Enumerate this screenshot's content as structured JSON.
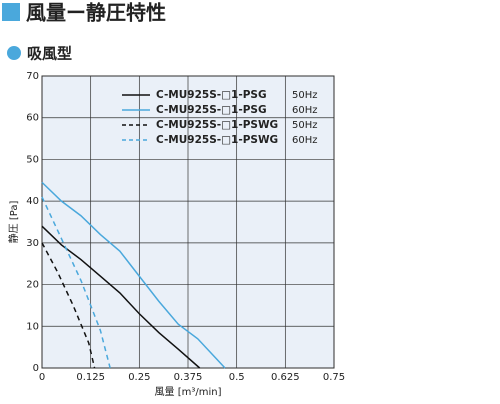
{
  "title": "風量ー静圧特性",
  "subtitle": "吸風型",
  "chart_data": {
    "type": "line",
    "xlabel": "風量 [m³/min]",
    "ylabel": "静圧 [Pa]",
    "xlim": [
      0,
      0.75
    ],
    "xticks": [
      0,
      0.125,
      0.25,
      0.375,
      0.5,
      0.625,
      0.75
    ],
    "ylim": [
      0,
      70
    ],
    "yticks": [
      0,
      10,
      20,
      30,
      40,
      50,
      60,
      70
    ],
    "grid": true,
    "legend": "upper right",
    "series": [
      {
        "name": "C-MU925S-□1-PSG",
        "frequency": "50Hz",
        "color": "#111111",
        "dashed": false,
        "x": [
          0,
          0.05,
          0.1,
          0.15,
          0.2,
          0.25,
          0.3,
          0.35,
          0.405
        ],
        "values": [
          34,
          29.5,
          26,
          22,
          18,
          13,
          8.5,
          4.5,
          0
        ]
      },
      {
        "name": "C-MU925S-□1-PSG",
        "frequency": "60Hz",
        "color": "#4aa8dc",
        "dashed": false,
        "x": [
          0,
          0.05,
          0.1,
          0.15,
          0.2,
          0.25,
          0.3,
          0.35,
          0.4,
          0.45,
          0.47
        ],
        "values": [
          44.5,
          40,
          36.5,
          32,
          28,
          22,
          16,
          10.5,
          7,
          2,
          0
        ]
      },
      {
        "name": "C-MU925S-□1-PSWG",
        "frequency": "50Hz",
        "color": "#111111",
        "dashed": true,
        "x": [
          0,
          0.04,
          0.08,
          0.12,
          0.135
        ],
        "values": [
          30,
          23,
          15,
          6,
          0
        ]
      },
      {
        "name": "C-MU925S-□1-PSWG",
        "frequency": "60Hz",
        "color": "#4aa8dc",
        "dashed": true,
        "x": [
          0,
          0.05,
          0.1,
          0.15,
          0.175
        ],
        "values": [
          41,
          31,
          21,
          9,
          0
        ]
      }
    ]
  }
}
